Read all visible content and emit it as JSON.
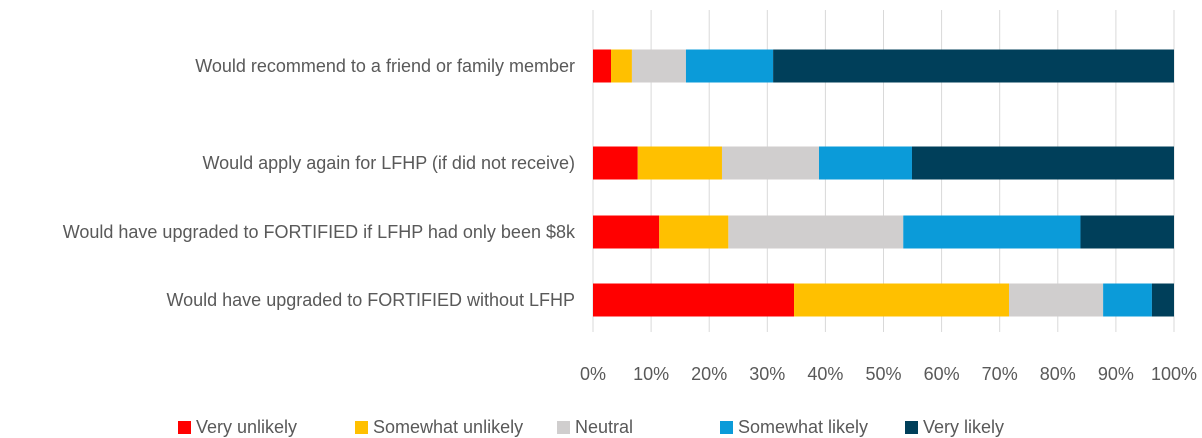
{
  "chart_data": {
    "type": "stacked_bar_horizontal",
    "categories": [
      "Would recommend to a friend or family member",
      "Would apply again for LFHP (if did not receive)",
      "Would have upgraded to FORTIFIED if LFHP had only been $8k",
      "Would have upgraded to FORTIFIED without LFHP"
    ],
    "series": [
      {
        "name": "Very unlikely",
        "color": "#ff0000",
        "values": [
          3.1,
          7.7,
          11.4,
          34.6
        ]
      },
      {
        "name": "Somewhat unlikely",
        "color": "#ffc000",
        "values": [
          3.6,
          14.5,
          11.9,
          37.0
        ]
      },
      {
        "name": "Neutral",
        "color": "#d0cece",
        "values": [
          9.3,
          16.7,
          30.1,
          16.2
        ]
      },
      {
        "name": "Somewhat likely",
        "color": "#0b9bd9",
        "values": [
          15.0,
          16.0,
          30.5,
          8.4
        ]
      },
      {
        "name": "Very likely",
        "color": "#003f5a",
        "values": [
          69.0,
          45.1,
          16.1,
          3.8
        ]
      }
    ],
    "xlim": [
      0,
      100
    ],
    "xticks": [
      {
        "value": 0,
        "label": "0%"
      },
      {
        "value": 10,
        "label": "10%"
      },
      {
        "value": 20,
        "label": "20%"
      },
      {
        "value": 30,
        "label": "30%"
      },
      {
        "value": 40,
        "label": "40%"
      },
      {
        "value": 50,
        "label": "50%"
      },
      {
        "value": 60,
        "label": "60%"
      },
      {
        "value": 70,
        "label": "70%"
      },
      {
        "value": 80,
        "label": "80%"
      },
      {
        "value": 90,
        "label": "90%"
      },
      {
        "value": 100,
        "label": "100%"
      }
    ],
    "grid": true,
    "legend": "bottom"
  }
}
